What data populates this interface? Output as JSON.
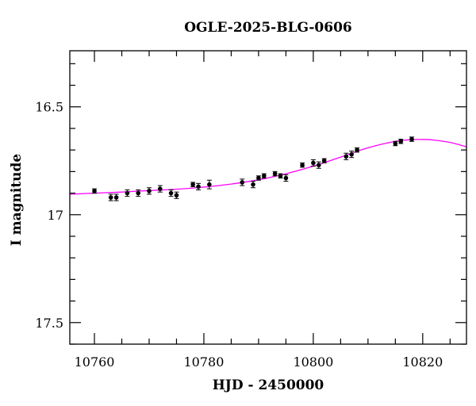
{
  "chart_data": {
    "type": "scatter",
    "title": "OGLE-2025-BLG-0606",
    "xlabel": "HJD - 2450000",
    "ylabel": "I magnitude",
    "xlim": [
      10755.5,
      10828
    ],
    "ylim": [
      16.24,
      17.6
    ],
    "y_inverted": true,
    "x_ticks": [
      10760,
      10780,
      10800,
      10820
    ],
    "x_tick_labels": [
      "10760",
      "10780",
      "10800",
      "10820"
    ],
    "y_ticks": [
      16.5,
      17,
      17.5
    ],
    "y_tick_labels": [
      "16.5",
      "17",
      "17.5"
    ],
    "grid": false,
    "colors": {
      "model": "#ff00ff",
      "points": "#000000"
    },
    "series": [
      {
        "type": "scatter",
        "x": [
          10760.0,
          10763.0,
          10764.0,
          10766.0,
          10768.0,
          10770.0,
          10772.0,
          10774.0,
          10775.0,
          10778.0,
          10779.0,
          10781.0,
          10787.0,
          10789.0,
          10790.0,
          10791.0,
          10793.0,
          10794.0,
          10795.0,
          10798.0,
          10800.0,
          10801.0,
          10802.0,
          10806.0,
          10807.0,
          10808.0,
          10815.0,
          10816.0,
          10818.0
        ],
        "y": [
          16.89,
          16.92,
          16.92,
          16.9,
          16.9,
          16.89,
          16.88,
          16.9,
          16.91,
          16.86,
          16.87,
          16.86,
          16.85,
          16.86,
          16.83,
          16.82,
          16.81,
          16.82,
          16.83,
          16.77,
          16.76,
          16.77,
          16.75,
          16.73,
          16.72,
          16.7,
          16.67,
          16.66,
          16.65
        ],
        "yerr": [
          0.01,
          0.015,
          0.015,
          0.015,
          0.015,
          0.015,
          0.015,
          0.015,
          0.015,
          0.01,
          0.015,
          0.02,
          0.015,
          0.015,
          0.01,
          0.01,
          0.01,
          0.01,
          0.015,
          0.01,
          0.015,
          0.015,
          0.01,
          0.015,
          0.015,
          0.01,
          0.01,
          0.01,
          0.01
        ]
      },
      {
        "type": "line",
        "x": [
          10755.5,
          10760,
          10765,
          10770,
          10775,
          10780,
          10785,
          10790,
          10795,
          10800,
          10805,
          10810,
          10815,
          10818,
          10820,
          10822,
          10825,
          10828
        ],
        "y": [
          16.905,
          16.9,
          16.895,
          16.888,
          16.882,
          16.872,
          16.858,
          16.838,
          16.81,
          16.775,
          16.733,
          16.69,
          16.66,
          16.652,
          16.651,
          16.654,
          16.665,
          16.685
        ]
      }
    ]
  }
}
